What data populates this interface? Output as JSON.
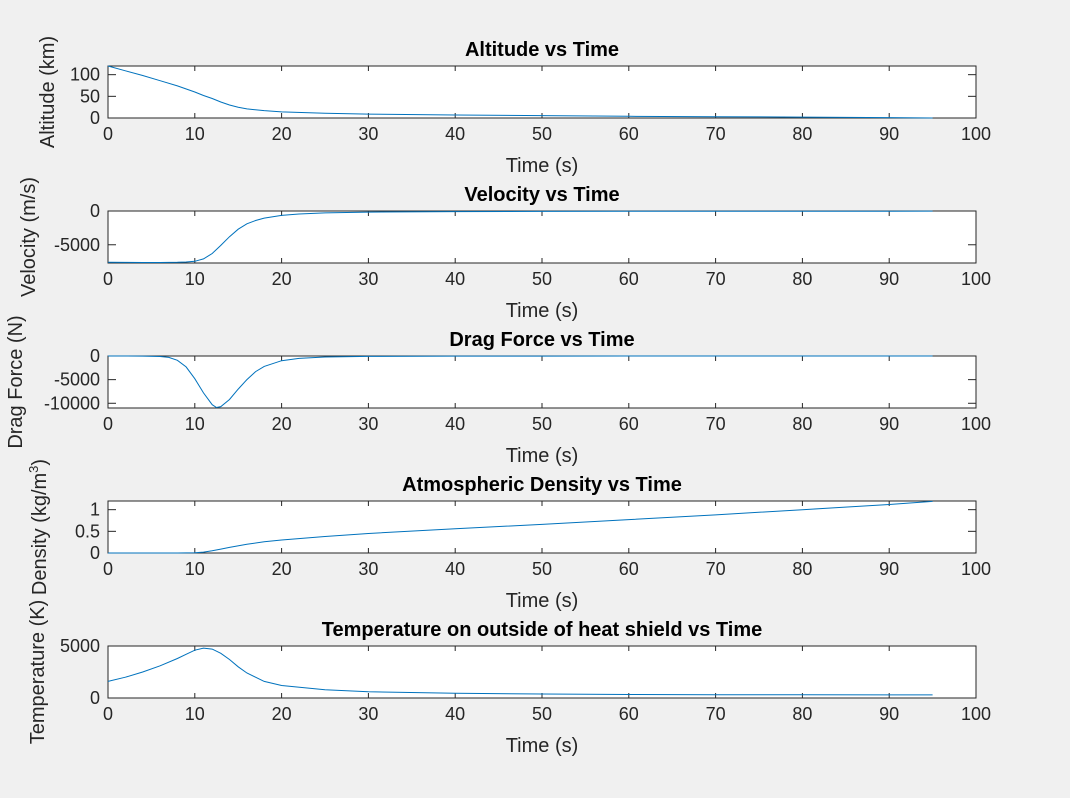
{
  "figure_background": "#f0f0f0",
  "line_color": "#0072bd",
  "chart_data": [
    {
      "type": "line",
      "title": "Altitude vs Time",
      "xlabel": "Time (s)",
      "ylabel": "Altitude (km)",
      "xlim": [
        0,
        100
      ],
      "ylim": [
        0,
        120
      ],
      "xticks": [
        0,
        10,
        20,
        30,
        40,
        50,
        60,
        70,
        80,
        90,
        100
      ],
      "yticks": [
        0,
        50,
        100
      ],
      "xtick_labels": [
        "0",
        "10",
        "20",
        "30",
        "40",
        "50",
        "60",
        "70",
        "80",
        "90",
        "100"
      ],
      "ytick_labels": [
        "0",
        "50",
        "100"
      ],
      "grid": false,
      "series": [
        {
          "x": [
            0,
            2,
            4,
            6,
            8,
            10,
            11,
            12,
            13,
            14,
            15,
            16,
            18,
            20,
            25,
            30,
            40,
            50,
            60,
            70,
            80,
            90,
            95
          ],
          "y": [
            120,
            109,
            98,
            86,
            74,
            60,
            52,
            45,
            37,
            30,
            25,
            21,
            17,
            14,
            11,
            9,
            7,
            5.5,
            4,
            3,
            2,
            1,
            0
          ]
        }
      ]
    },
    {
      "type": "line",
      "title": "Velocity vs Time",
      "xlabel": "Time (s)",
      "ylabel": "Velocity (m/s)",
      "xlim": [
        0,
        100
      ],
      "ylim": [
        -7700,
        0
      ],
      "xticks": [
        0,
        10,
        20,
        30,
        40,
        50,
        60,
        70,
        80,
        90,
        100
      ],
      "yticks": [
        -5000,
        0
      ],
      "xtick_labels": [
        "0",
        "10",
        "20",
        "30",
        "40",
        "50",
        "60",
        "70",
        "80",
        "90",
        "100"
      ],
      "ytick_labels": [
        "-5000",
        "0"
      ],
      "grid": false,
      "series": [
        {
          "x": [
            0,
            2,
            4,
            6,
            8,
            9,
            10,
            11,
            12,
            13,
            14,
            15,
            16,
            17,
            18,
            20,
            22,
            25,
            30,
            40,
            50,
            60,
            70,
            80,
            90,
            95
          ],
          "y": [
            -7600,
            -7610,
            -7620,
            -7620,
            -7600,
            -7550,
            -7450,
            -7100,
            -6300,
            -5100,
            -3800,
            -2700,
            -1900,
            -1400,
            -1050,
            -650,
            -450,
            -280,
            -160,
            -90,
            -60,
            -45,
            -35,
            -30,
            -25,
            -20
          ]
        }
      ]
    },
    {
      "type": "line",
      "title": "Drag Force vs Time",
      "xlabel": "Time (s)",
      "ylabel": "Drag Force (N)",
      "xlim": [
        0,
        100
      ],
      "ylim": [
        -11000,
        0
      ],
      "xticks": [
        0,
        10,
        20,
        30,
        40,
        50,
        60,
        70,
        80,
        90,
        100
      ],
      "yticks": [
        -10000,
        -5000,
        0
      ],
      "xtick_labels": [
        "0",
        "10",
        "20",
        "30",
        "40",
        "50",
        "60",
        "70",
        "80",
        "90",
        "100"
      ],
      "ytick_labels": [
        "-10000",
        "-5000",
        "0"
      ],
      "grid": false,
      "series": [
        {
          "x": [
            0,
            4,
            6,
            7,
            8,
            9,
            10,
            11,
            12,
            12.5,
            13,
            14,
            15,
            16,
            17,
            18,
            20,
            22,
            25,
            30,
            40,
            50,
            60,
            70,
            80,
            90,
            95
          ],
          "y": [
            0,
            -20,
            -100,
            -300,
            -900,
            -2300,
            -4800,
            -7800,
            -10300,
            -10900,
            -10700,
            -9200,
            -7000,
            -5000,
            -3300,
            -2200,
            -1000,
            -500,
            -220,
            -80,
            -30,
            -15,
            -10,
            -8,
            -6,
            -5,
            -5
          ]
        }
      ]
    },
    {
      "type": "line",
      "title": "Atmospheric Density vs Time",
      "xlabel": "Time (s)",
      "ylabel": "Density (kg/m",
      "ylabel_superscript": "3",
      "ylabel_suffix": ")",
      "xlim": [
        0,
        100
      ],
      "ylim": [
        0,
        1.2
      ],
      "xticks": [
        0,
        10,
        20,
        30,
        40,
        50,
        60,
        70,
        80,
        90,
        100
      ],
      "yticks": [
        0,
        0.5,
        1
      ],
      "xtick_labels": [
        "0",
        "10",
        "20",
        "30",
        "40",
        "50",
        "60",
        "70",
        "80",
        "90",
        "100"
      ],
      "ytick_labels": [
        "0",
        "0.5",
        "1"
      ],
      "grid": false,
      "series": [
        {
          "x": [
            0,
            5,
            8,
            10,
            11,
            12,
            13,
            14,
            16,
            18,
            20,
            25,
            30,
            40,
            50,
            60,
            70,
            80,
            90,
            95
          ],
          "y": [
            0,
            0,
            0,
            0.005,
            0.02,
            0.05,
            0.09,
            0.13,
            0.2,
            0.26,
            0.3,
            0.38,
            0.45,
            0.56,
            0.66,
            0.77,
            0.88,
            1.0,
            1.12,
            1.19
          ]
        }
      ]
    },
    {
      "type": "line",
      "title": "Temperature on outside of heat shield vs Time",
      "xlabel": "Time (s)",
      "ylabel": "Temperature (K)",
      "xlim": [
        0,
        100
      ],
      "ylim": [
        0,
        5000
      ],
      "xticks": [
        0,
        10,
        20,
        30,
        40,
        50,
        60,
        70,
        80,
        90,
        100
      ],
      "yticks": [
        0,
        5000
      ],
      "xtick_labels": [
        "0",
        "10",
        "20",
        "30",
        "40",
        "50",
        "60",
        "70",
        "80",
        "90",
        "100"
      ],
      "ytick_labels": [
        "0",
        "5000"
      ],
      "grid": false,
      "series": [
        {
          "x": [
            0,
            2,
            4,
            6,
            8,
            9,
            10,
            11,
            12,
            13,
            14,
            15,
            16,
            18,
            20,
            25,
            30,
            40,
            50,
            60,
            70,
            80,
            90,
            95
          ],
          "y": [
            1600,
            2000,
            2500,
            3100,
            3800,
            4200,
            4600,
            4800,
            4700,
            4300,
            3700,
            3000,
            2400,
            1600,
            1200,
            800,
            600,
            450,
            380,
            340,
            320,
            310,
            300,
            300
          ]
        }
      ]
    }
  ]
}
